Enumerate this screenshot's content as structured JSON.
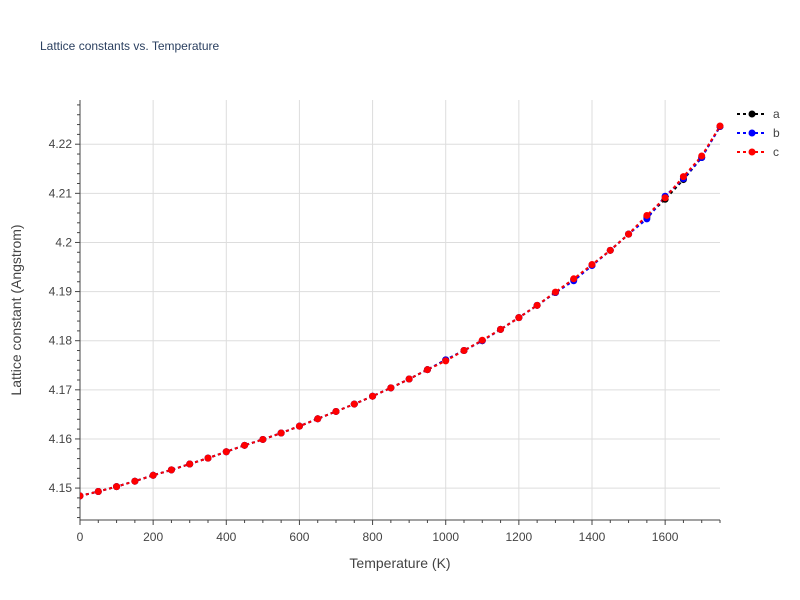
{
  "chart_data": {
    "type": "line",
    "title": "Lattice constants vs. Temperature",
    "xlabel": "Temperature (K)",
    "ylabel": "Lattice constant (Angstrom)",
    "xlim": [
      0,
      1750
    ],
    "ylim": [
      4.1435,
      4.229
    ],
    "xticks": [
      0,
      200,
      400,
      600,
      800,
      1000,
      1200,
      1400,
      1600
    ],
    "xtick_labels": [
      "0",
      "200",
      "400",
      "600",
      "800",
      "1000",
      "1200",
      "1400",
      "1600"
    ],
    "yticks": [
      4.15,
      4.16,
      4.17,
      4.18,
      4.19,
      4.2,
      4.21,
      4.22
    ],
    "ytick_labels": [
      "4.15",
      "4.16",
      "4.17",
      "4.18",
      "4.19",
      "4.2",
      "4.21",
      "4.22"
    ],
    "grid": true,
    "legend_position": "top-right",
    "x": [
      0,
      50,
      100,
      150,
      200,
      250,
      300,
      350,
      400,
      450,
      500,
      550,
      600,
      650,
      700,
      750,
      800,
      850,
      900,
      950,
      1000,
      1050,
      1100,
      1150,
      1200,
      1250,
      1300,
      1350,
      1400,
      1450,
      1500,
      1550,
      1600,
      1650,
      1700,
      1750
    ],
    "series": [
      {
        "name": "a",
        "color": "#000000",
        "values": [
          4.1484,
          4.1493,
          4.1503,
          4.1514,
          4.1526,
          4.1537,
          4.1549,
          4.1561,
          4.1574,
          4.1587,
          4.1599,
          4.1612,
          4.1626,
          4.1641,
          4.1656,
          4.1671,
          4.1687,
          4.1704,
          4.1722,
          4.1741,
          4.1761,
          4.178,
          4.18,
          4.1823,
          4.1847,
          4.1872,
          4.1898,
          4.1925,
          4.1954,
          4.1984,
          4.2017,
          4.2052,
          4.2088,
          4.2128,
          4.2173,
          4.2236
        ]
      },
      {
        "name": "b",
        "color": "#0000ff",
        "values": [
          4.1484,
          4.1493,
          4.1503,
          4.1514,
          4.1526,
          4.1537,
          4.1549,
          4.1561,
          4.1574,
          4.1587,
          4.1599,
          4.1612,
          4.1626,
          4.1641,
          4.1656,
          4.1671,
          4.1687,
          4.1704,
          4.1722,
          4.1741,
          4.1761,
          4.178,
          4.18,
          4.1823,
          4.1847,
          4.1872,
          4.1898,
          4.1922,
          4.1953,
          4.1984,
          4.2017,
          4.2048,
          4.2094,
          4.213,
          4.2173,
          4.2236
        ]
      },
      {
        "name": "c",
        "color": "#ff0000",
        "values": [
          4.1484,
          4.1493,
          4.1503,
          4.1514,
          4.1526,
          4.1537,
          4.1549,
          4.1561,
          4.1574,
          4.1587,
          4.1599,
          4.1612,
          4.1626,
          4.1641,
          4.1656,
          4.1671,
          4.1687,
          4.1704,
          4.1722,
          4.1741,
          4.1759,
          4.178,
          4.1801,
          4.1823,
          4.1847,
          4.1872,
          4.1899,
          4.1926,
          4.1955,
          4.1984,
          4.2017,
          4.2055,
          4.2091,
          4.2134,
          4.2176,
          4.2237
        ]
      }
    ]
  }
}
